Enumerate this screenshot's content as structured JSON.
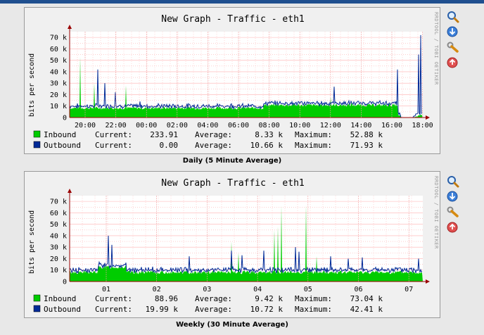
{
  "colors": {
    "inbound": "#00cc00",
    "outbound": "#002a97",
    "grid_minor": "#ffb0b0",
    "grid_major": "#f0a0a0",
    "axis": "#990000"
  },
  "icons": [
    "zoom-icon",
    "export-icon",
    "edit-icon",
    "remove-icon"
  ],
  "graphs": [
    {
      "title": "New Graph - Traffic - eth1",
      "caption": "Daily (5 Minute Average)",
      "vertical_label": "bits per second",
      "watermark": "RRDTOOL / TOBI OETIKER",
      "y_ticks": [
        "70 k",
        "60 k",
        "50 k",
        "40 k",
        "30 k",
        "20 k",
        "10 k",
        "0"
      ],
      "x_ticks": [
        "20:00",
        "22:00",
        "00:00",
        "02:00",
        "04:00",
        "06:00",
        "08:00",
        "10:00",
        "12:00",
        "14:00",
        "16:00",
        "18:00"
      ],
      "legend": [
        {
          "name": "Inbound",
          "current_label": "Current:",
          "current": "233.91",
          "average_label": "Average:",
          "average": "8.33 k",
          "maximum_label": "Maximum:",
          "maximum": "52.88 k"
        },
        {
          "name": "Outbound",
          "current_label": "Current:",
          "current": "0.00",
          "average_label": "Average:",
          "average": "10.66 k",
          "maximum_label": "Maximum:",
          "maximum": "71.93 k"
        }
      ]
    },
    {
      "title": "New Graph - Traffic - eth1",
      "caption": "Weekly (30 Minute Average)",
      "vertical_label": "bits per second",
      "watermark": "RRDTOOL / TOBI OETIKER",
      "y_ticks": [
        "70 k",
        "60 k",
        "50 k",
        "40 k",
        "30 k",
        "20 k",
        "10 k",
        "0"
      ],
      "x_ticks": [
        "01",
        "02",
        "03",
        "04",
        "05",
        "06",
        "07"
      ],
      "legend": [
        {
          "name": "Inbound",
          "current_label": "Current:",
          "current": "88.96",
          "average_label": "Average:",
          "average": "9.42 k",
          "maximum_label": "Maximum:",
          "maximum": "73.04 k"
        },
        {
          "name": "Outbound",
          "current_label": "Current:",
          "current": "19.99 k",
          "average_label": "Average:",
          "average": "10.72 k",
          "maximum_label": "Maximum:",
          "maximum": "42.41 k"
        }
      ]
    }
  ]
}
